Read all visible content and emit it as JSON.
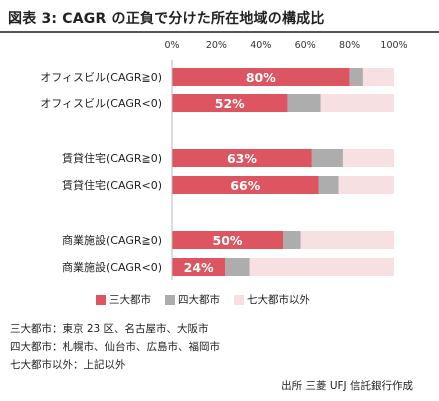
{
  "title": "図表 3: CAGR の正負で分けた所在地域の構成比",
  "chart_data": {
    "type": "bar",
    "orientation": "horizontal",
    "stacked": true,
    "xlim": [
      0,
      100
    ],
    "x_ticks": [
      "0%",
      "20%",
      "40%",
      "60%",
      "80%",
      "100%"
    ],
    "tick_values": [
      0,
      20,
      40,
      60,
      80,
      100
    ],
    "legend_position": "bottom",
    "grid": false,
    "categories": [
      "オフィスビル(CAGR≧0)",
      "オフィスビル(CAGR<0)",
      "賃貸住宅(CAGR≧0)",
      "賃貸住宅(CAGR<0)",
      "商業施設(CAGR≧0)",
      "商業施設(CAGR<0)"
    ],
    "series": [
      {
        "name": "三大都市",
        "color": "#dd5560",
        "values": [
          80,
          52,
          63,
          66,
          50,
          24
        ]
      },
      {
        "name": "四大都市",
        "color": "#adadad",
        "values": [
          6,
          15,
          14,
          9,
          8,
          11
        ]
      },
      {
        "name": "七大都市以外",
        "color": "#f6e0e2",
        "values": [
          14,
          33,
          23,
          25,
          42,
          65
        ]
      }
    ],
    "data_labels": [
      "80%",
      "52%",
      "63%",
      "66%",
      "50%",
      "24%"
    ]
  },
  "notes": [
    "三大都市：東京 23 区、名古屋市、大阪市",
    "四大都市：札幌市、仙台市、広島市、福岡市",
    "七大都市以外：上記以外"
  ],
  "source": "出所 三菱 UFJ 信託銀行作成"
}
